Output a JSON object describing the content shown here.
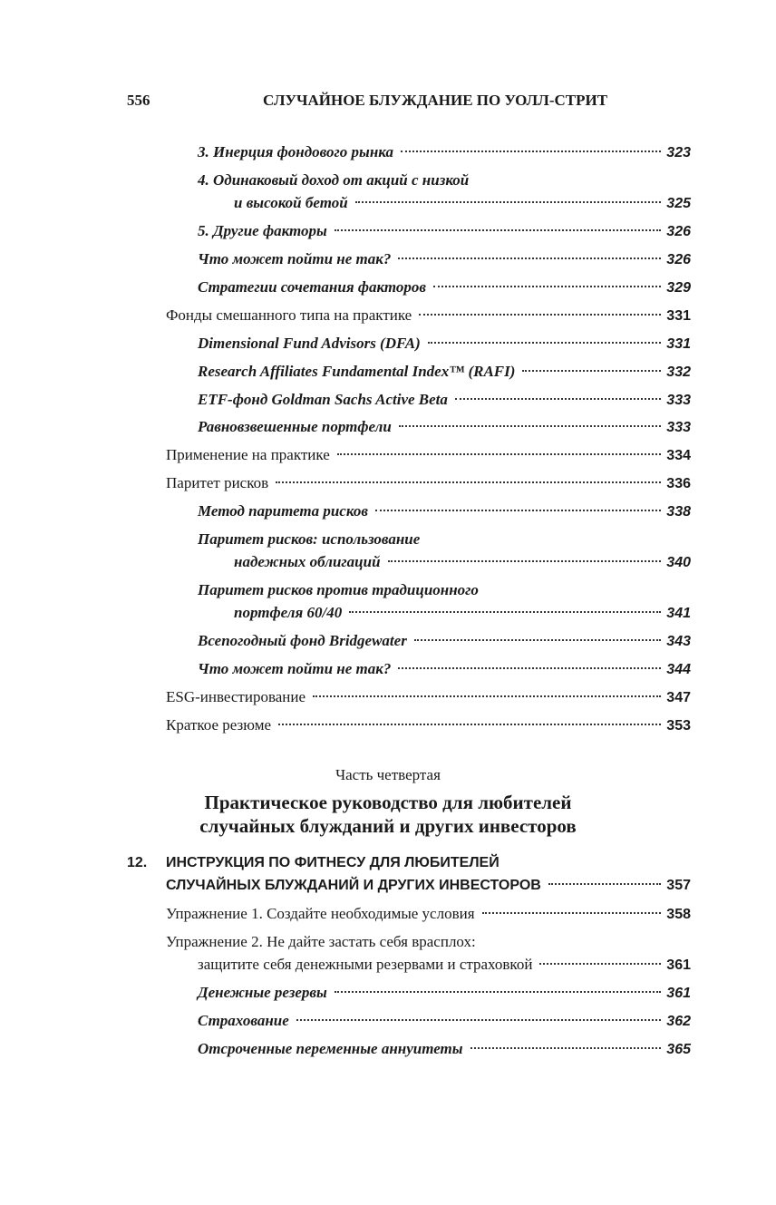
{
  "header": {
    "page_number": "556",
    "running_title": "СЛУЧАЙНОЕ БЛУЖДАНИЕ ПО УОЛЛ-СТРИТ"
  },
  "entries": [
    {
      "text": "3. Инерция фондового рынка",
      "page": "323"
    },
    {
      "text": "4. Одинаковый доход от акций с низкой",
      "text2": "и высокой бетой",
      "page": "325"
    },
    {
      "text": "5. Другие факторы",
      "page": "326"
    },
    {
      "text": "Что может пойти не так?",
      "page": "326"
    },
    {
      "text": "Стратегии сочетания факторов",
      "page": "329"
    },
    {
      "text": "Фонды смешанного типа на практике",
      "page": "331"
    },
    {
      "text": "Dimensional Fund Advisors (DFA)",
      "page": "331"
    },
    {
      "text": "Research Affiliates Fundamental Index™ (RAFI)",
      "page": "332"
    },
    {
      "text": "ETF-фонд Goldman Sachs Active Beta",
      "page": "333"
    },
    {
      "text": "Равновзвешенные портфели",
      "page": "333"
    },
    {
      "text": "Применение на практике",
      "page": "334"
    },
    {
      "text": "Паритет рисков",
      "page": "336"
    },
    {
      "text": "Метод паритета рисков",
      "page": "338"
    },
    {
      "text": "Паритет рисков: использование",
      "text2": "надежных облигаций",
      "page": "340"
    },
    {
      "text": "Паритет рисков против традиционного",
      "text2": "портфеля 60/40",
      "page": "341"
    },
    {
      "text": "Всепогодный фонд Bridgewater",
      "page": "343"
    },
    {
      "text": "Что может пойти не так?",
      "page": "344"
    },
    {
      "text": "ESG-инвестирование",
      "page": "347"
    },
    {
      "text": "Краткое резюме",
      "page": "353"
    }
  ],
  "part": {
    "label": "Часть четвертая",
    "title_line1": "Практическое руководство для любителей",
    "title_line2": "случайных блужданий и других инвесторов"
  },
  "chapter": {
    "number": "12.",
    "title_line1": "ИНСТРУКЦИЯ ПО ФИТНЕСУ ДЛЯ ЛЮБИТЕЛЕЙ",
    "title_line2": "СЛУЧАЙНЫХ БЛУЖДАНИЙ И ДРУГИХ ИНВЕСТОРОВ",
    "page": "357"
  },
  "chapter_entries": [
    {
      "text": "Упражнение 1. Создайте необходимые условия",
      "page": "358"
    },
    {
      "text": "Упражнение 2. Не дайте застать себя врасплох:",
      "text2": "защитите себя денежными резервами и страховкой",
      "page": "361"
    },
    {
      "text": "Денежные резервы",
      "page": "361"
    },
    {
      "text": "Страхование",
      "page": "362"
    },
    {
      "text": "Отсроченные переменные аннуитеты",
      "page": "365"
    }
  ]
}
